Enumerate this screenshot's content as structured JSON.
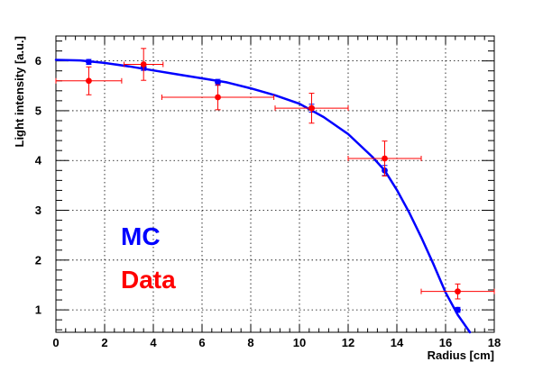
{
  "chart_data": {
    "type": "scatter",
    "title": "",
    "xlabel": "Radius [cm]",
    "ylabel": "Light intensity [a.u.]",
    "xlim": [
      0,
      18
    ],
    "ylim": [
      0.55,
      6.5
    ],
    "xticks": [
      0,
      2,
      4,
      6,
      8,
      10,
      12,
      14,
      16,
      18
    ],
    "yticks": [
      1,
      2,
      3,
      4,
      5,
      6
    ],
    "grid": true,
    "legend": [
      {
        "label": "MC",
        "color": "#0000ff"
      },
      {
        "label": "Data",
        "color": "#ff0000"
      }
    ],
    "legend_placement": "lower-left",
    "series": [
      {
        "key": "mc_curve",
        "kind": "line",
        "color": "#0000ff",
        "x": [
          0,
          1,
          2,
          3,
          4,
          5,
          6,
          7,
          8,
          9,
          10,
          11,
          12,
          13,
          13.5,
          14,
          14.5,
          15,
          15.5,
          16,
          16.5,
          17
        ],
        "y": [
          6.02,
          6.01,
          5.96,
          5.89,
          5.81,
          5.73,
          5.65,
          5.57,
          5.45,
          5.31,
          5.14,
          4.87,
          4.53,
          4.07,
          3.8,
          3.41,
          2.96,
          2.46,
          1.92,
          1.35,
          0.9,
          0.55
        ]
      },
      {
        "key": "mc_points",
        "kind": "scatter",
        "color": "#0000ff",
        "x": [
          1.35,
          3.6,
          6.65,
          10.5,
          13.5,
          16.5
        ],
        "y": [
          5.98,
          5.87,
          5.57,
          5.05,
          3.8,
          1.0
        ],
        "yerr": [
          0.05,
          0.06,
          0.06,
          0.08,
          0.1,
          0.05
        ]
      },
      {
        "key": "data_points",
        "kind": "scatter",
        "color": "#ff0000",
        "x": [
          1.35,
          3.6,
          6.65,
          10.5,
          13.5,
          16.5
        ],
        "y": [
          5.6,
          5.93,
          5.27,
          5.05,
          4.04,
          1.37
        ],
        "xerr": [
          1.35,
          0.8,
          2.3,
          1.5,
          1.5,
          1.5
        ],
        "yerr": [
          0.28,
          0.32,
          0.25,
          0.3,
          0.35,
          0.15
        ]
      }
    ]
  }
}
